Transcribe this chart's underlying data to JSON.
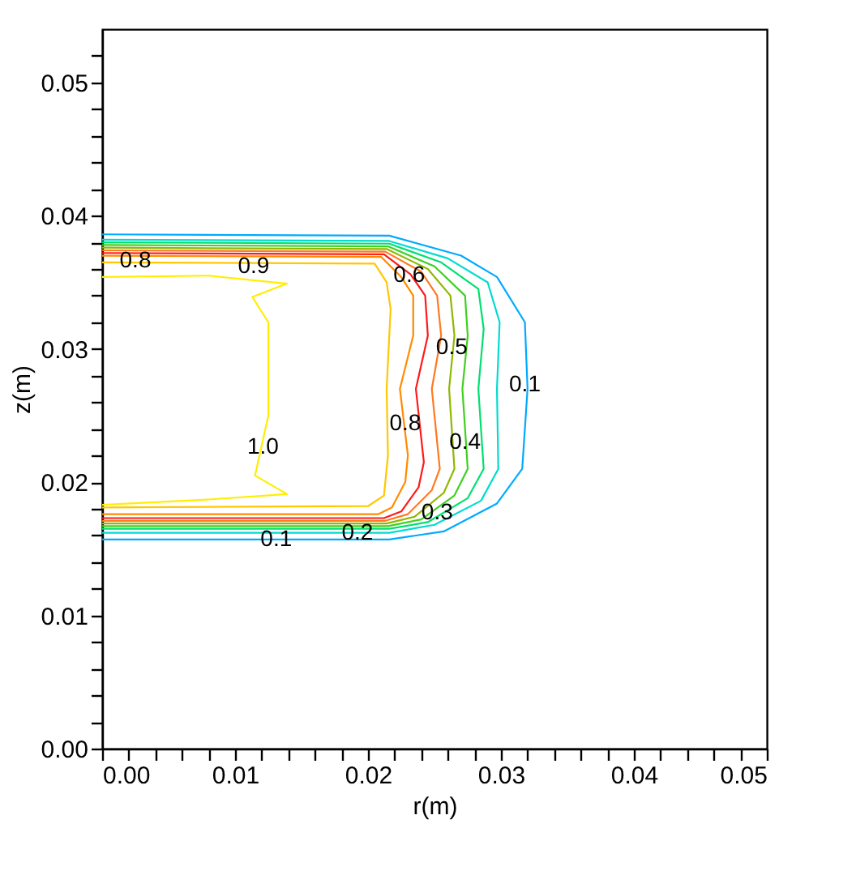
{
  "chart_data": {
    "type": "line",
    "xlabel": "r(m)",
    "ylabel": "z(m)",
    "xlim": [
      0,
      0.05
    ],
    "ylim": [
      0,
      0.054
    ],
    "grid": false,
    "marker": "none",
    "line_style": "solid",
    "xticks": [
      {
        "value": 0,
        "label": "0.00"
      },
      {
        "value": 0.002,
        "label": null
      },
      {
        "value": 0.004,
        "label": null
      },
      {
        "value": 0.006,
        "label": null
      },
      {
        "value": 0.008,
        "label": null
      },
      {
        "value": 0.01,
        "label": "0.01"
      },
      {
        "value": 0.012,
        "label": null
      },
      {
        "value": 0.014,
        "label": null
      },
      {
        "value": 0.016,
        "label": null
      },
      {
        "value": 0.018,
        "label": null
      },
      {
        "value": 0.02,
        "label": "0.02"
      },
      {
        "value": 0.022,
        "label": null
      },
      {
        "value": 0.024,
        "label": null
      },
      {
        "value": 0.026,
        "label": null
      },
      {
        "value": 0.028,
        "label": null
      },
      {
        "value": 0.03,
        "label": "0.03"
      },
      {
        "value": 0.032,
        "label": null
      },
      {
        "value": 0.034,
        "label": null
      },
      {
        "value": 0.036,
        "label": null
      },
      {
        "value": 0.038,
        "label": null
      },
      {
        "value": 0.04,
        "label": "0.04"
      },
      {
        "value": 0.042,
        "label": null
      },
      {
        "value": 0.044,
        "label": null
      },
      {
        "value": 0.046,
        "label": null
      },
      {
        "value": 0.048,
        "label": null
      },
      {
        "value": 0.05,
        "label": "0.05"
      }
    ],
    "yticks": [
      {
        "value": 0,
        "label": "0.00"
      },
      {
        "value": 0.002,
        "label": null
      },
      {
        "value": 0.004,
        "label": null
      },
      {
        "value": 0.006,
        "label": null
      },
      {
        "value": 0.008,
        "label": null
      },
      {
        "value": 0.01,
        "label": "0.01"
      },
      {
        "value": 0.012,
        "label": null
      },
      {
        "value": 0.014,
        "label": null
      },
      {
        "value": 0.016,
        "label": null
      },
      {
        "value": 0.018,
        "label": null
      },
      {
        "value": 0.02,
        "label": "0.02"
      },
      {
        "value": 0.022,
        "label": null
      },
      {
        "value": 0.024,
        "label": null
      },
      {
        "value": 0.026,
        "label": null
      },
      {
        "value": 0.028,
        "label": null
      },
      {
        "value": 0.03,
        "label": "0.03"
      },
      {
        "value": 0.032,
        "label": null
      },
      {
        "value": 0.034,
        "label": null
      },
      {
        "value": 0.036,
        "label": null
      },
      {
        "value": 0.038,
        "label": null
      },
      {
        "value": 0.04,
        "label": "0.04"
      },
      {
        "value": 0.042,
        "label": null
      },
      {
        "value": 0.044,
        "label": null
      },
      {
        "value": 0.046,
        "label": null
      },
      {
        "value": 0.048,
        "label": null
      },
      {
        "value": 0.05,
        "label": "0.05"
      },
      {
        "value": 0.052,
        "label": null
      }
    ],
    "series": [
      {
        "color": "#00aaff",
        "x": [
          0,
          0.0216,
          0.027,
          0.0297,
          0.0318,
          0.032,
          0.0316,
          0.0297,
          0.0257,
          0.0216,
          0
        ],
        "values": [
          0.0386,
          0.0385,
          0.037,
          0.0354,
          0.032,
          0.027,
          0.021,
          0.0184,
          0.0163,
          0.0157,
          0.0157
        ]
      },
      {
        "color": "#00dcd0",
        "x": [
          0,
          0.0216,
          0.026,
          0.029,
          0.0299,
          0.0297,
          0.0298,
          0.0285,
          0.025,
          0.0216,
          0
        ],
        "values": [
          0.0382,
          0.0381,
          0.0368,
          0.035,
          0.032,
          0.027,
          0.021,
          0.0186,
          0.0168,
          0.0162,
          0.0162
        ]
      },
      {
        "color": "#00e070",
        "x": [
          0,
          0.0216,
          0.0255,
          0.0283,
          0.0287,
          0.0283,
          0.0287,
          0.0275,
          0.0245,
          0.0216,
          0
        ],
        "values": [
          0.038,
          0.0379,
          0.0365,
          0.0345,
          0.0315,
          0.027,
          0.021,
          0.0188,
          0.017,
          0.0165,
          0.0165
        ]
      },
      {
        "color": "#40d020",
        "x": [
          0,
          0.0215,
          0.025,
          0.0273,
          0.0275,
          0.0271,
          0.0275,
          0.0265,
          0.024,
          0.0215,
          0
        ],
        "values": [
          0.0378,
          0.0377,
          0.0362,
          0.034,
          0.031,
          0.027,
          0.021,
          0.019,
          0.0172,
          0.0167,
          0.0167
        ]
      },
      {
        "color": "#90b800",
        "x": [
          0,
          0.0214,
          0.0245,
          0.0262,
          0.0265,
          0.0261,
          0.0265,
          0.0257,
          0.0235,
          0.0214,
          0
        ],
        "values": [
          0.0376,
          0.0375,
          0.036,
          0.034,
          0.031,
          0.027,
          0.021,
          0.0192,
          0.0174,
          0.0169,
          0.0169
        ]
      },
      {
        "color": "#ff7a20",
        "x": [
          0,
          0.0213,
          0.024,
          0.0252,
          0.0255,
          0.0248,
          0.0254,
          0.0248,
          0.023,
          0.0213,
          0
        ],
        "values": [
          0.0374,
          0.0373,
          0.0358,
          0.034,
          0.031,
          0.027,
          0.021,
          0.0194,
          0.0176,
          0.0171,
          0.0171
        ]
      },
      {
        "color": "#ff1a1a",
        "x": [
          0,
          0.0212,
          0.0232,
          0.0243,
          0.0245,
          0.0236,
          0.0242,
          0.0238,
          0.0225,
          0.0212,
          0
        ],
        "values": [
          0.0372,
          0.0371,
          0.0356,
          0.034,
          0.031,
          0.027,
          0.0215,
          0.0196,
          0.0178,
          0.0173,
          0.0173
        ]
      },
      {
        "color": "#ff8c00",
        "x": [
          0,
          0.021,
          0.0225,
          0.0234,
          0.0234,
          0.0224,
          0.023,
          0.0228,
          0.0218,
          0.0208,
          0
        ],
        "values": [
          0.037,
          0.0369,
          0.0354,
          0.034,
          0.031,
          0.027,
          0.022,
          0.02,
          0.0181,
          0.0176,
          0.0176
        ]
      },
      {
        "color": "#ffc800",
        "x": [
          0,
          0.0205,
          0.0214,
          0.0217,
          0.0214,
          0.0215,
          0.0212,
          0.02,
          0
        ],
        "values": [
          0.0365,
          0.0364,
          0.035,
          0.033,
          0.027,
          0.022,
          0.019,
          0.0182,
          0.0181
        ]
      },
      {
        "color": "#ffee00",
        "x": [
          0,
          0.008,
          0.0139,
          0.0113,
          0.0125,
          0.0125,
          0.0115,
          0.0139,
          0.008,
          0
        ],
        "values": [
          0.0354,
          0.0355,
          0.0349,
          0.0339,
          0.032,
          0.025,
          0.0205,
          0.0191,
          0.0187,
          0.0183
        ]
      }
    ],
    "annotations": [
      {
        "text": "0.8",
        "x": 0.0025,
        "y": 0.0366
      },
      {
        "text": "0.9",
        "x": 0.0114,
        "y": 0.0362
      },
      {
        "text": "0.6",
        "x": 0.0231,
        "y": 0.0355
      },
      {
        "text": "0.5",
        "x": 0.0263,
        "y": 0.0301
      },
      {
        "text": "0.8",
        "x": 0.0228,
        "y": 0.0244
      },
      {
        "text": "1.0",
        "x": 0.0121,
        "y": 0.0226
      },
      {
        "text": "0.4",
        "x": 0.0273,
        "y": 0.023
      },
      {
        "text": "0.1",
        "x": 0.0318,
        "y": 0.0273
      },
      {
        "text": "0.3",
        "x": 0.0252,
        "y": 0.0177
      },
      {
        "text": "0.2",
        "x": 0.0192,
        "y": 0.0162
      },
      {
        "text": "0.1",
        "x": 0.0131,
        "y": 0.0157
      }
    ]
  }
}
